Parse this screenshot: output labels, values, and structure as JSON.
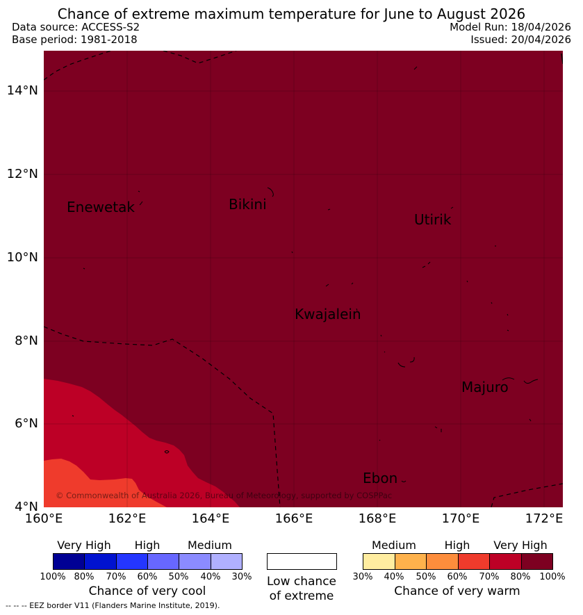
{
  "header": {
    "title": "Chance of extreme maximum temperature for June to August 2026",
    "data_source": "Data source: ACCESS-S2",
    "base_period": "Base period: 1981-2018",
    "model_run": "Model Run: 18/04/2026",
    "issued": "Issued: 20/04/2026"
  },
  "map": {
    "lat_ticks": [
      "14°N",
      "12°N",
      "10°N",
      "8°N",
      "6°N",
      "4°N"
    ],
    "lon_ticks": [
      "160°E",
      "162°E",
      "164°E",
      "166°E",
      "168°E",
      "170°E",
      "172°E"
    ],
    "places": [
      "Enewetak",
      "Bikini",
      "Utirik",
      "Kwajalein",
      "Majuro",
      "Ebon"
    ],
    "copyright": "© Commonwealth of Australia 2026, Bureau of Meteorology, supported by COSPPac",
    "border_color": "#000000"
  },
  "legend": {
    "cool": {
      "categories": [
        "Very High",
        "High",
        "Medium"
      ],
      "ticks": [
        "100%",
        "80%",
        "70%",
        "60%",
        "50%",
        "40%",
        "30%"
      ],
      "colors": [
        "#000094",
        "#0012d0",
        "#2436ff",
        "#6767ff",
        "#8b8bff",
        "#b0b0ff"
      ],
      "title": "Chance of very cool"
    },
    "neutral": {
      "line1": "Low chance",
      "line2": "of extreme",
      "color": "#ffffff"
    },
    "warm": {
      "categories": [
        "Medium",
        "High",
        "Very High"
      ],
      "ticks": [
        "30%",
        "40%",
        "50%",
        "60%",
        "70%",
        "80%",
        "100%"
      ],
      "colors": [
        "#ffeda0",
        "#feb24c",
        "#fd8d3c",
        "#ef3b2c",
        "#bd0026",
        "#7d0021"
      ],
      "title": "Chance of very warm"
    },
    "eez_note": "--  --  -- EEZ border V11 (Flanders Marine Institute, 2019)."
  }
}
